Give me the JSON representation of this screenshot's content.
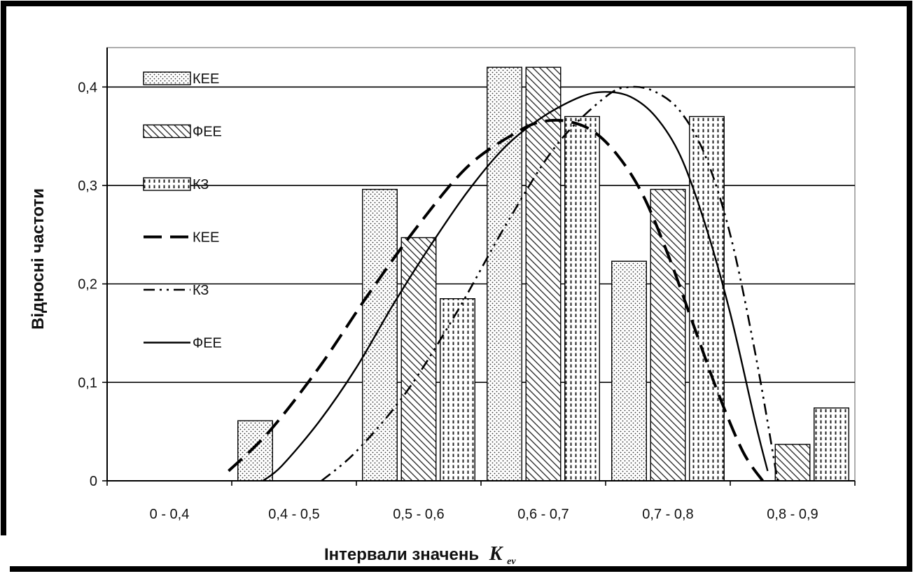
{
  "chart_data": {
    "type": "bar",
    "title": "",
    "xlabel": "Інтервали значень",
    "xlabel_symbol": "K",
    "xlabel_subscript": "ev",
    "ylabel": "Відносні частоти",
    "ylim": [
      0,
      0.44
    ],
    "y_ticks": [
      "0",
      "0,1",
      "0,2",
      "0,3",
      "0,4"
    ],
    "y_tick_values": [
      0,
      0.1,
      0.2,
      0.3,
      0.4
    ],
    "grid": "horizontal",
    "legend_position": "top-left",
    "categories": [
      "0 - 0,4",
      "0,4 - 0,5",
      "0,5 - 0,6",
      "0,6 - 0,7",
      "0,7 - 0,8",
      "0,8 - 0,9"
    ],
    "series": [
      {
        "name": "КЕЕ",
        "kind": "bar",
        "pattern": "dots",
        "values": [
          0,
          0.061,
          0.296,
          0.42,
          0.223,
          0
        ]
      },
      {
        "name": "ФЕЕ",
        "kind": "bar",
        "pattern": "hatch",
        "values": [
          0,
          0,
          0.247,
          0.42,
          0.296,
          0.037
        ]
      },
      {
        "name": "КЗ",
        "kind": "bar",
        "pattern": "dashes",
        "values": [
          0,
          0,
          0.185,
          0.37,
          0.37,
          0.074
        ]
      }
    ],
    "curves": [
      {
        "name": "КЕЕ",
        "style": "long-dash",
        "x": [
          0.39,
          0.43,
          0.47,
          0.51,
          0.55,
          0.59,
          0.63,
          0.65,
          0.67,
          0.69,
          0.71,
          0.73,
          0.75,
          0.77,
          0.79,
          0.81,
          0.826
        ],
        "y": [
          0.01,
          0.05,
          0.115,
          0.19,
          0.26,
          0.32,
          0.355,
          0.365,
          0.365,
          0.355,
          0.33,
          0.29,
          0.23,
          0.16,
          0.09,
          0.03,
          0
        ]
      },
      {
        "name": "КЗ",
        "style": "dash-dot-dot",
        "x": [
          0.472,
          0.5,
          0.54,
          0.58,
          0.62,
          0.66,
          0.7,
          0.72,
          0.74,
          0.76,
          0.78,
          0.8,
          0.82,
          0.838
        ],
        "y": [
          0,
          0.03,
          0.09,
          0.17,
          0.26,
          0.34,
          0.39,
          0.4,
          0.395,
          0.375,
          0.33,
          0.25,
          0.13,
          0
        ]
      },
      {
        "name": "ФЕЕ",
        "style": "solid",
        "x": [
          0.425,
          0.44,
          0.47,
          0.5,
          0.53,
          0.56,
          0.59,
          0.62,
          0.65,
          0.68,
          0.7,
          0.72,
          0.74,
          0.76,
          0.78,
          0.8,
          0.82,
          0.83
        ],
        "y": [
          0,
          0.015,
          0.06,
          0.115,
          0.18,
          0.24,
          0.295,
          0.34,
          0.37,
          0.39,
          0.395,
          0.39,
          0.37,
          0.33,
          0.26,
          0.17,
          0.06,
          0.01
        ]
      }
    ]
  }
}
